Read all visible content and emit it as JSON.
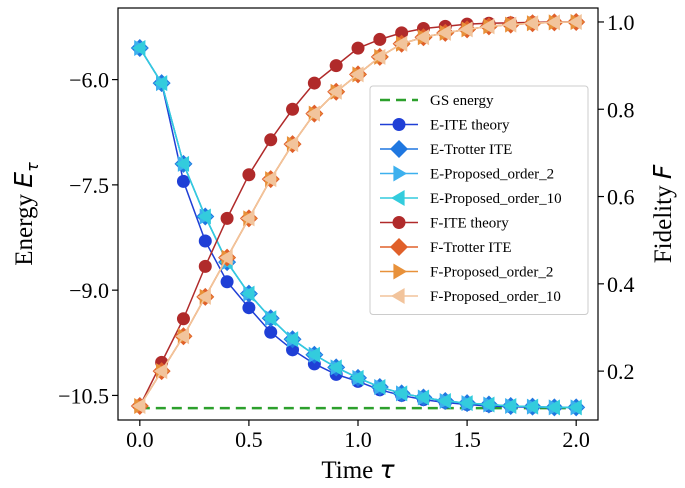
{
  "chart_data": {
    "type": "line",
    "x": [
      0.0,
      0.1,
      0.2,
      0.3,
      0.4,
      0.5,
      0.6,
      0.7,
      0.8,
      0.9,
      1.0,
      1.1,
      1.2,
      1.3,
      1.4,
      1.5,
      1.6,
      1.7,
      1.8,
      1.9,
      2.0
    ],
    "xlabel": "Time",
    "xlabel_symbol": "τ",
    "ylabel_left": "Energy",
    "ylabel_left_symbol": "E",
    "ylabel_left_sub": "τ",
    "ylabel_right": "Fidelity",
    "ylabel_right_symbol": "F",
    "xlim": [
      -0.1,
      2.1
    ],
    "ylim_left": [
      -10.85,
      -4.98
    ],
    "ylim_right": [
      0.088,
      1.032
    ],
    "xticks": [
      0.0,
      0.5,
      1.0,
      1.5,
      2.0
    ],
    "xtick_labels": [
      "0.0",
      "0.5",
      "1.0",
      "1.5",
      "2.0"
    ],
    "yticks_left": [
      -6.0,
      -7.5,
      -9.0,
      -10.5
    ],
    "ytick_labels_left": [
      "−6.0",
      "−7.5",
      "−9.0",
      "−10.5"
    ],
    "yticks_right": [
      0.2,
      0.4,
      0.6,
      0.8,
      1.0
    ],
    "ytick_labels_right": [
      "0.2",
      "0.4",
      "0.6",
      "0.8",
      "1.0"
    ],
    "legend_position": "center-right",
    "gs_energy": {
      "name": "GS energy",
      "value": -10.68,
      "color": "#2ca02c"
    },
    "series": [
      {
        "name": "E-ITE theory",
        "axis": "left",
        "marker": "circle",
        "color": "#1f3fd6",
        "values": [
          -5.55,
          -6.05,
          -7.45,
          -8.3,
          -8.88,
          -9.25,
          -9.6,
          -9.85,
          -10.05,
          -10.2,
          -10.3,
          -10.42,
          -10.5,
          -10.56,
          -10.6,
          -10.63,
          -10.65,
          -10.66,
          -10.67,
          -10.67,
          -10.67
        ]
      },
      {
        "name": "E-Trotter ITE",
        "axis": "left",
        "marker": "diamond",
        "color": "#1f77e0",
        "values": [
          -5.55,
          -6.05,
          -7.2,
          -7.95,
          -8.6,
          -9.05,
          -9.4,
          -9.7,
          -9.92,
          -10.1,
          -10.25,
          -10.38,
          -10.47,
          -10.53,
          -10.58,
          -10.61,
          -10.63,
          -10.65,
          -10.66,
          -10.67,
          -10.67
        ]
      },
      {
        "name": "E-Proposed_order_2",
        "axis": "left",
        "marker": "triangle-right",
        "color": "#3cb0ee",
        "values": [
          -5.55,
          -6.05,
          -7.2,
          -7.95,
          -8.6,
          -9.05,
          -9.4,
          -9.7,
          -9.92,
          -10.1,
          -10.25,
          -10.38,
          -10.47,
          -10.53,
          -10.58,
          -10.61,
          -10.63,
          -10.65,
          -10.66,
          -10.67,
          -10.67
        ]
      },
      {
        "name": "E-Proposed_order_10",
        "axis": "left",
        "marker": "triangle-left",
        "color": "#33ccdd",
        "values": [
          -5.55,
          -6.05,
          -7.2,
          -7.95,
          -8.6,
          -9.05,
          -9.4,
          -9.7,
          -9.92,
          -10.1,
          -10.25,
          -10.38,
          -10.47,
          -10.53,
          -10.58,
          -10.61,
          -10.63,
          -10.65,
          -10.66,
          -10.67,
          -10.67
        ]
      },
      {
        "name": "F-ITE theory",
        "axis": "right",
        "marker": "circle",
        "color": "#b02a2a",
        "values": [
          0.12,
          0.22,
          0.32,
          0.44,
          0.55,
          0.65,
          0.73,
          0.8,
          0.86,
          0.9,
          0.94,
          0.96,
          0.975,
          0.985,
          0.99,
          0.995,
          0.997,
          0.998,
          0.999,
          1.0,
          1.0
        ]
      },
      {
        "name": "F-Trotter ITE",
        "axis": "right",
        "marker": "diamond",
        "color": "#e0602a",
        "values": [
          0.12,
          0.2,
          0.28,
          0.37,
          0.46,
          0.55,
          0.64,
          0.72,
          0.79,
          0.84,
          0.88,
          0.92,
          0.95,
          0.965,
          0.975,
          0.983,
          0.99,
          0.994,
          0.997,
          0.999,
          1.0
        ]
      },
      {
        "name": "F-Proposed_order_2",
        "axis": "right",
        "marker": "triangle-right",
        "color": "#e8913a",
        "values": [
          0.12,
          0.2,
          0.28,
          0.37,
          0.46,
          0.55,
          0.64,
          0.72,
          0.79,
          0.84,
          0.88,
          0.92,
          0.95,
          0.965,
          0.975,
          0.983,
          0.99,
          0.994,
          0.997,
          0.999,
          1.0
        ]
      },
      {
        "name": "F-Proposed_order_10",
        "axis": "right",
        "marker": "triangle-left",
        "color": "#f2c49c",
        "values": [
          0.12,
          0.2,
          0.28,
          0.37,
          0.46,
          0.55,
          0.64,
          0.72,
          0.79,
          0.84,
          0.88,
          0.92,
          0.95,
          0.965,
          0.975,
          0.983,
          0.99,
          0.994,
          0.997,
          0.999,
          1.0
        ]
      }
    ]
  }
}
